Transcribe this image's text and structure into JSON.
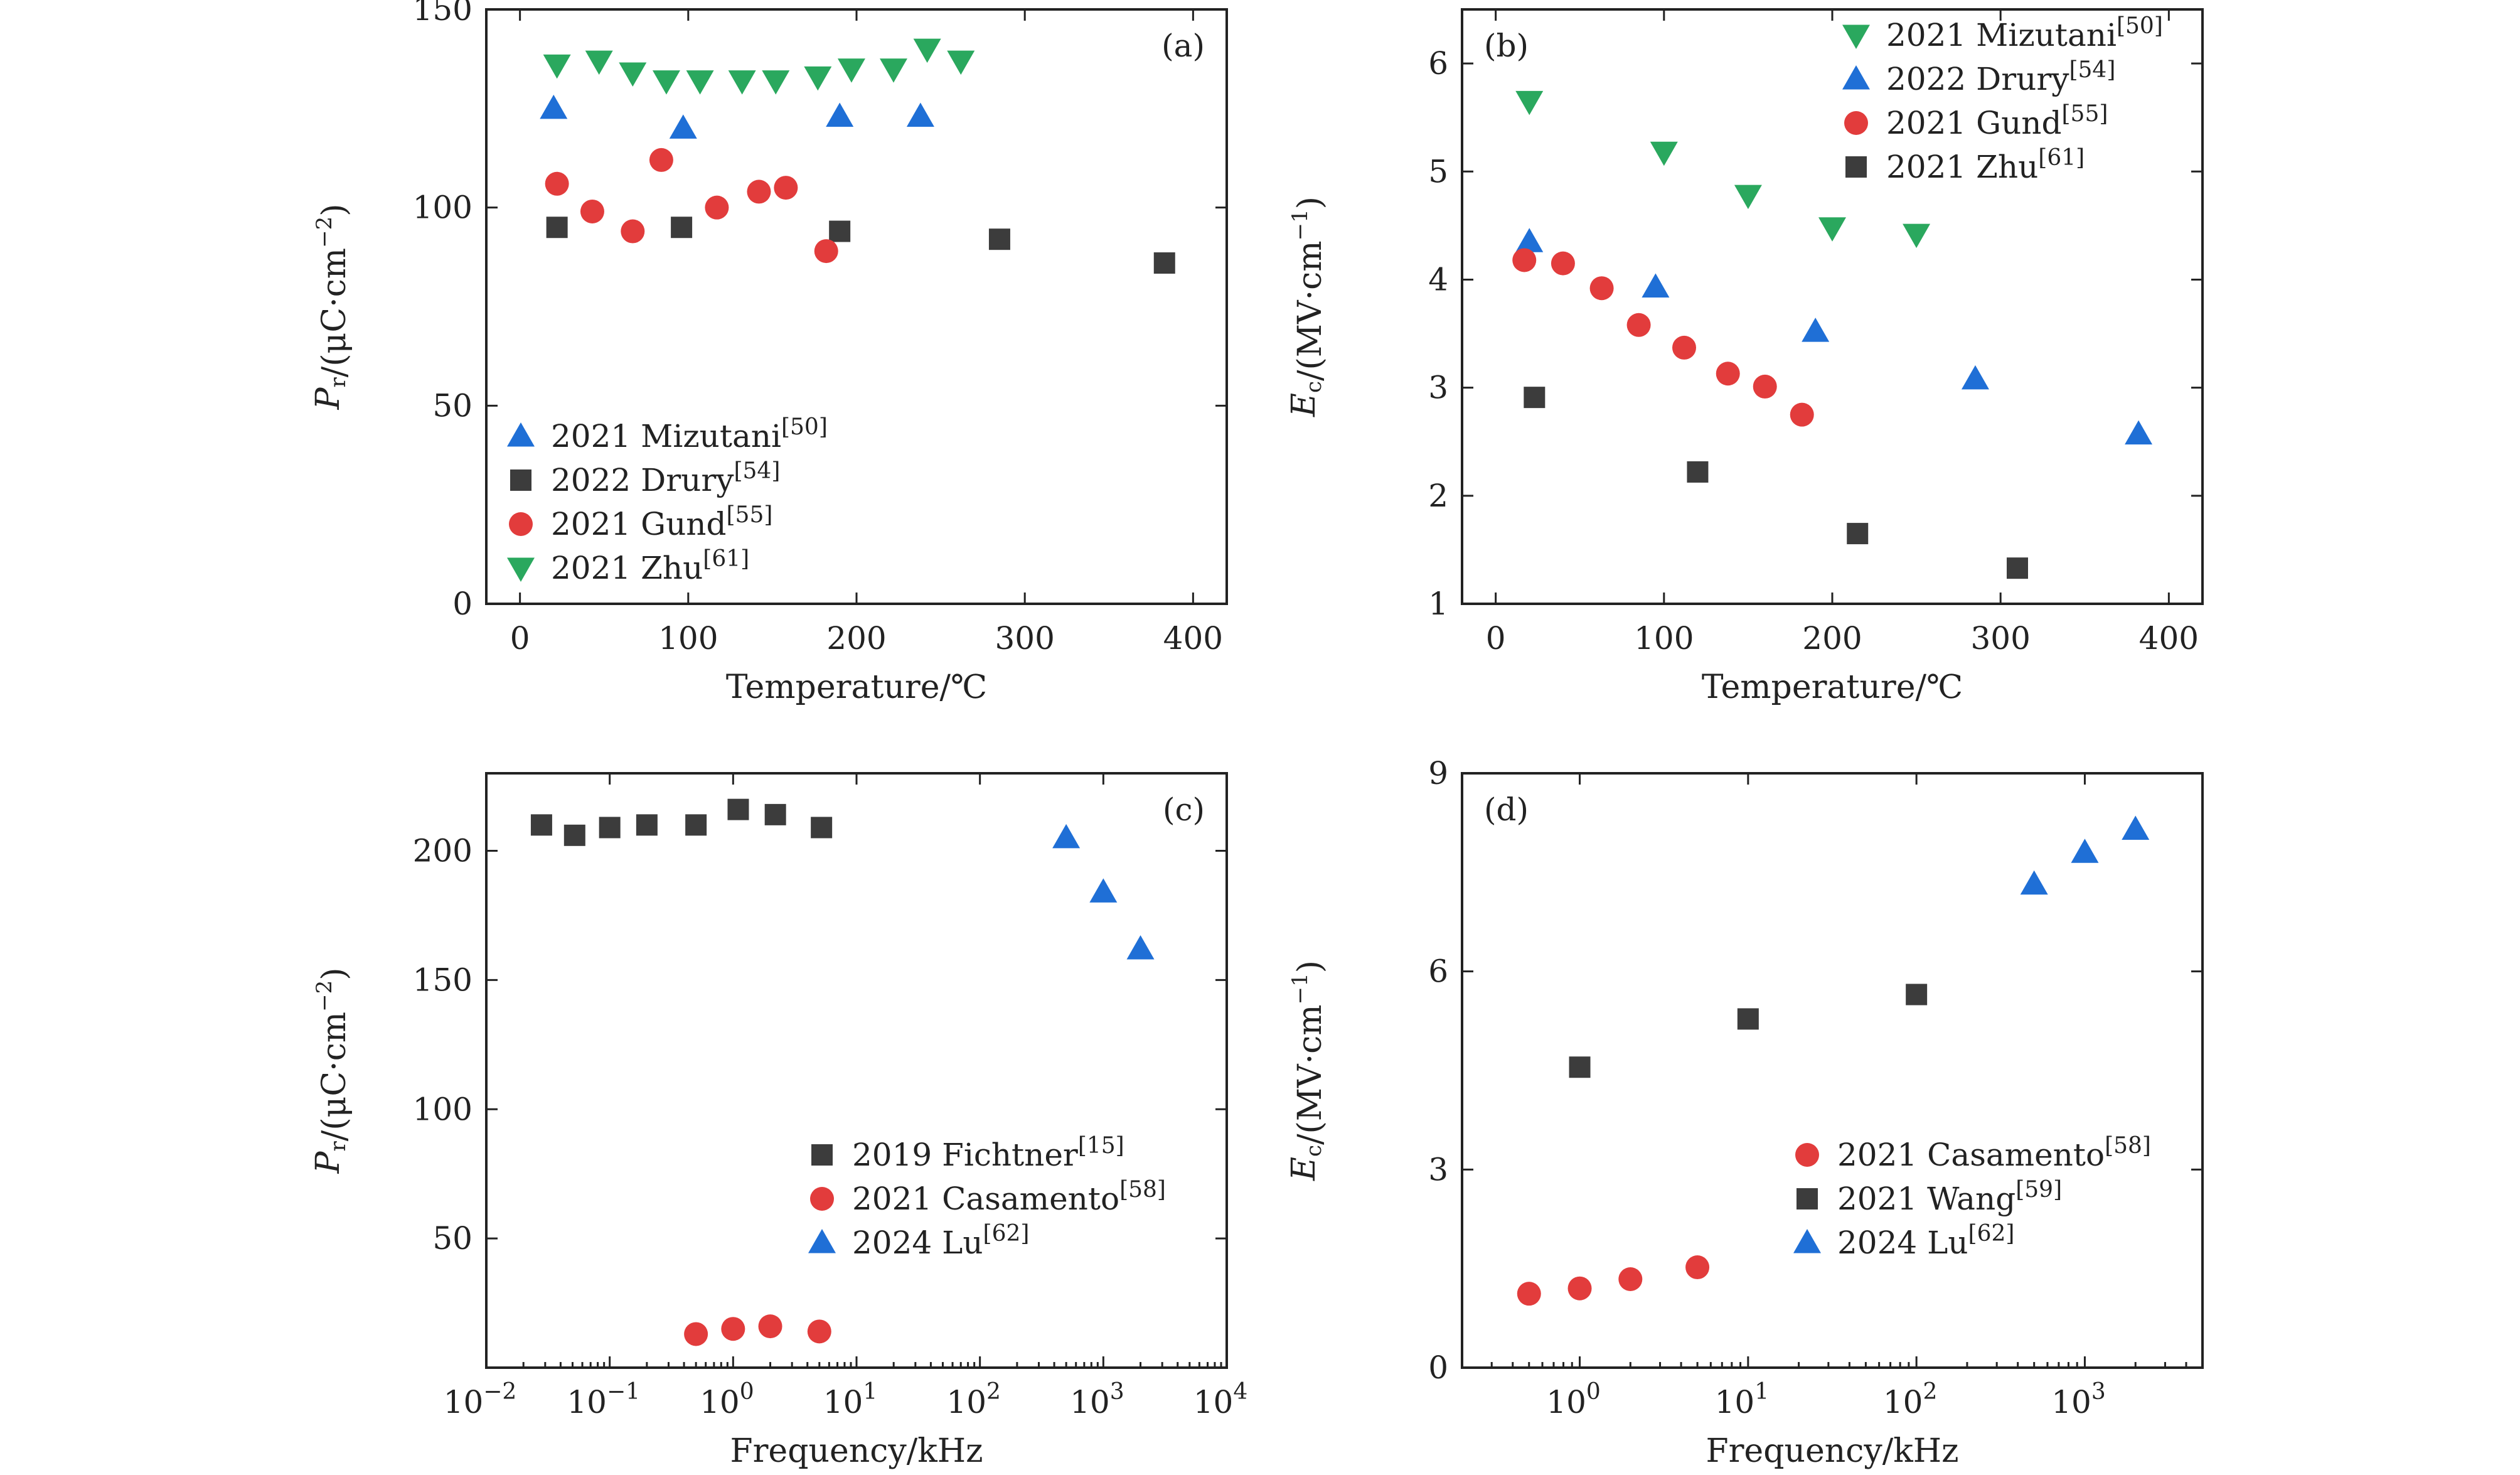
{
  "colors": {
    "blue": "#1f6fd6",
    "gray": "#3c3c3c",
    "red": "#e23c3c",
    "green": "#2aa85e"
  },
  "chart_data": [
    {
      "id": "a",
      "type": "scatter",
      "panel_label": "(a)",
      "xlabel": "Temperature/℃",
      "ylabel": "P_r/(μC·cm^−2)",
      "xlim": [
        -20,
        420
      ],
      "ylim": [
        0,
        150
      ],
      "xticks": [
        0,
        100,
        200,
        300,
        400
      ],
      "yticks": [
        0,
        50,
        100,
        150
      ],
      "legend_position": "bottom-left",
      "series": [
        {
          "name": "2021 Mizutani",
          "ref": "[50]",
          "marker": "triangle-up",
          "color": "blue",
          "x": [
            20,
            97,
            190,
            238
          ],
          "y": [
            125,
            120,
            123,
            123
          ]
        },
        {
          "name": "2022 Drury",
          "ref": "[54]",
          "marker": "square",
          "color": "gray",
          "x": [
            22,
            96,
            190,
            285,
            383
          ],
          "y": [
            95,
            95,
            94,
            92,
            86
          ]
        },
        {
          "name": "2021 Gund",
          "ref": "[55]",
          "marker": "circle",
          "color": "red",
          "x": [
            22,
            43,
            67,
            84,
            117,
            142,
            158,
            182
          ],
          "y": [
            106,
            99,
            94,
            112,
            100,
            104,
            105,
            89
          ]
        },
        {
          "name": "2021 Zhu",
          "ref": "[61]",
          "marker": "triangle-down",
          "color": "green",
          "x": [
            22,
            47,
            67,
            87,
            107,
            132,
            152,
            177,
            197,
            222,
            242,
            262
          ],
          "y": [
            136,
            137,
            134,
            132,
            132,
            132,
            132,
            133,
            135,
            135,
            140,
            137
          ]
        }
      ]
    },
    {
      "id": "b",
      "type": "scatter",
      "panel_label": "(b)",
      "xlabel": "Temperature/℃",
      "ylabel": "E_c/(MV·cm^−1)",
      "xlim": [
        -20,
        420
      ],
      "ylim": [
        1,
        6.5
      ],
      "xticks": [
        0,
        100,
        200,
        300,
        400
      ],
      "yticks": [
        1,
        2,
        3,
        4,
        5,
        6
      ],
      "legend_position": "top-right",
      "series": [
        {
          "name": "2021 Mizutani",
          "ref": "[50]",
          "marker": "triangle-down",
          "color": "green",
          "x": [
            20,
            100,
            150,
            200,
            250
          ],
          "y": [
            5.65,
            5.18,
            4.78,
            4.48,
            4.42
          ]
        },
        {
          "name": "2022 Drury",
          "ref": "[54]",
          "marker": "triangle-up",
          "color": "blue",
          "x": [
            20,
            95,
            190,
            285,
            382
          ],
          "y": [
            4.35,
            3.93,
            3.52,
            3.08,
            2.57
          ]
        },
        {
          "name": "2021 Gund",
          "ref": "[55]",
          "marker": "circle",
          "color": "red",
          "x": [
            17,
            40,
            63,
            85,
            112,
            138,
            160,
            182
          ],
          "y": [
            4.18,
            4.15,
            3.92,
            3.58,
            3.37,
            3.13,
            3.01,
            2.75
          ]
        },
        {
          "name": "2021 Zhu",
          "ref": "[61]",
          "marker": "square",
          "color": "gray",
          "x": [
            23,
            120,
            215,
            310
          ],
          "y": [
            2.91,
            2.22,
            1.65,
            1.33
          ]
        }
      ]
    },
    {
      "id": "c",
      "type": "scatter",
      "panel_label": "(c)",
      "xlabel": "Frequency/kHz",
      "ylabel": "P_r/(μC·cm^−2)",
      "xscale": "log",
      "xlim": [
        0.01,
        10000
      ],
      "ylim": [
        0,
        230
      ],
      "xticks": [
        0.01,
        0.1,
        1,
        10,
        100,
        1000,
        10000
      ],
      "xticklabels": [
        [
          "10",
          "−2"
        ],
        [
          "10",
          "−1"
        ],
        [
          "10",
          "0"
        ],
        [
          "10",
          "1"
        ],
        [
          "10",
          "2"
        ],
        [
          "10",
          "3"
        ],
        [
          "10",
          "4"
        ]
      ],
      "yticks": [
        50,
        100,
        150,
        200
      ],
      "legend_position": "center-right",
      "series": [
        {
          "name": "2019 Fichtner",
          "ref": "[15]",
          "marker": "square",
          "color": "gray",
          "x": [
            0.028,
            0.052,
            0.1,
            0.2,
            0.5,
            1.1,
            2.2,
            5.2
          ],
          "y": [
            210,
            206,
            209,
            210,
            210,
            216,
            214,
            209
          ]
        },
        {
          "name": "2021 Casamento",
          "ref": "[58]",
          "marker": "circle",
          "color": "red",
          "x": [
            0.5,
            1,
            2,
            5
          ],
          "y": [
            13,
            15,
            16,
            14
          ]
        },
        {
          "name": "2024 Lu",
          "ref": "[62]",
          "marker": "triangle-up",
          "color": "blue",
          "x": [
            500,
            1000,
            2000
          ],
          "y": [
            205,
            184,
            162
          ]
        }
      ]
    },
    {
      "id": "d",
      "type": "scatter",
      "panel_label": "(d)",
      "xlabel": "Frequency/kHz",
      "ylabel": "E_c/(MV·cm^−1)",
      "xscale": "log",
      "xlim": [
        0.2,
        5000
      ],
      "ylim": [
        0,
        9
      ],
      "xticks": [
        1,
        10,
        100,
        1000
      ],
      "xticklabels": [
        [
          "10",
          "0"
        ],
        [
          "10",
          "1"
        ],
        [
          "10",
          "2"
        ],
        [
          "10",
          "3"
        ]
      ],
      "yticks": [
        0,
        3,
        6,
        9
      ],
      "legend_position": "bottom-right",
      "series": [
        {
          "name": "2021 Casamento",
          "ref": "[58]",
          "marker": "circle",
          "color": "red",
          "x": [
            0.5,
            1,
            2,
            5
          ],
          "y": [
            1.12,
            1.2,
            1.34,
            1.52
          ]
        },
        {
          "name": "2021 Wang",
          "ref": "[59]",
          "marker": "square",
          "color": "gray",
          "x": [
            1,
            10,
            100
          ],
          "y": [
            4.55,
            5.28,
            5.65
          ]
        },
        {
          "name": "2024 Lu",
          "ref": "[62]",
          "marker": "triangle-up",
          "color": "blue",
          "x": [
            500,
            1000,
            2000
          ],
          "y": [
            7.32,
            7.8,
            8.15
          ]
        }
      ]
    }
  ]
}
